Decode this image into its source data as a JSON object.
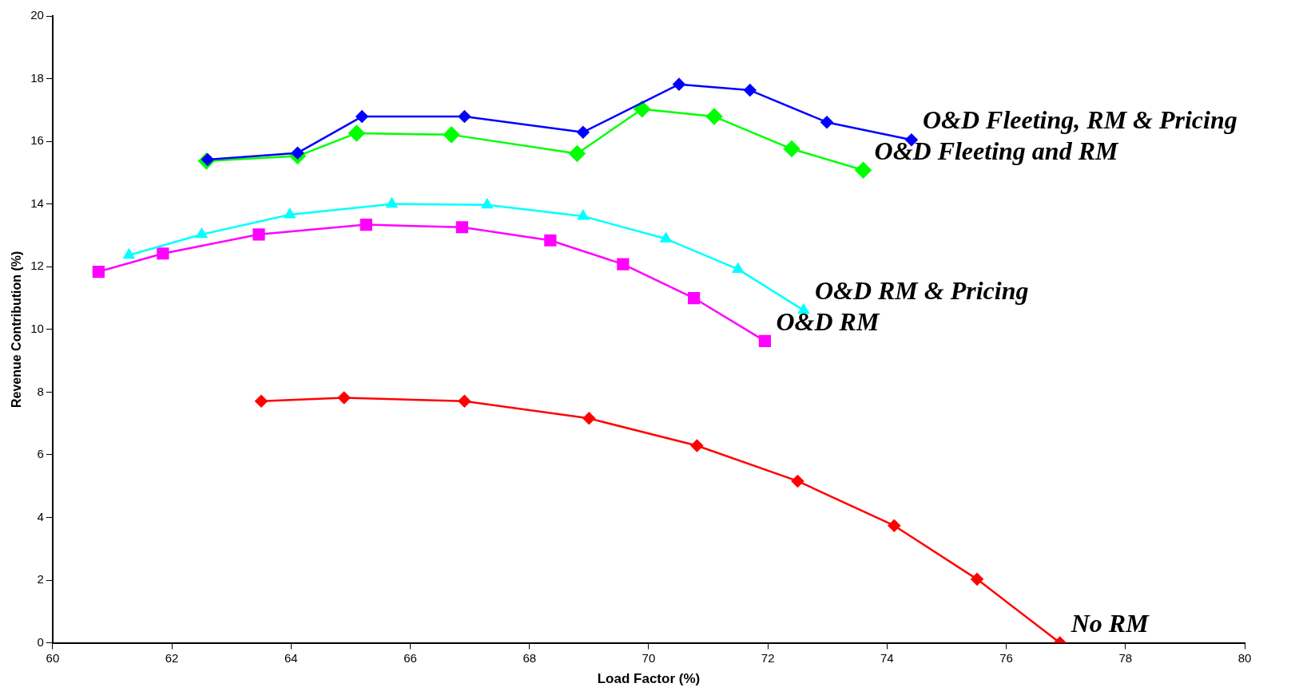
{
  "chart_data": {
    "type": "line",
    "xlabel": "Load Factor (%)",
    "ylabel": "Revenue Contribution (%)",
    "xlim": [
      60,
      80
    ],
    "xticks": [
      60,
      62,
      64,
      66,
      68,
      70,
      72,
      74,
      76,
      78,
      80
    ],
    "ylim": [
      0,
      20
    ],
    "yticks": [
      0,
      2,
      4,
      6,
      8,
      10,
      12,
      14,
      16,
      18,
      20
    ],
    "grid": false,
    "legend": false,
    "line_style": "solid",
    "series": [
      {
        "name": "O&D Fleeting, RM & Pricing",
        "color": "#0000ff",
        "marker": "diamond",
        "x": [
          62.6,
          64.11,
          65.19,
          66.91,
          68.9,
          70.51,
          71.7,
          72.99,
          74.41
        ],
        "values": [
          15.42,
          15.63,
          16.79,
          16.79,
          16.29,
          17.82,
          17.63,
          16.61,
          16.05
        ]
      },
      {
        "name": "O&D Fleeting and RM",
        "color": "#00ff00",
        "marker": "diamond",
        "x": [
          62.58,
          64.11,
          65.1,
          66.69,
          68.8,
          69.89,
          71.1,
          72.4,
          73.6
        ],
        "values": [
          15.37,
          15.53,
          16.26,
          16.21,
          15.61,
          17.03,
          16.79,
          15.76,
          15.08
        ]
      },
      {
        "name": "O&D RM & Pricing",
        "color": "#00ffff",
        "marker": "triangle",
        "x": [
          61.28,
          62.5,
          63.98,
          65.69,
          67.29,
          68.9,
          70.29,
          71.5,
          72.6
        ],
        "values": [
          12.37,
          13.03,
          13.66,
          14.0,
          13.97,
          13.61,
          12.89,
          11.92,
          10.61
        ]
      },
      {
        "name": "O&D RM",
        "color": "#ff00ff",
        "marker": "square",
        "x": [
          60.77,
          61.85,
          63.46,
          65.26,
          66.87,
          68.35,
          69.57,
          70.76,
          71.95
        ],
        "values": [
          11.84,
          12.42,
          13.03,
          13.34,
          13.26,
          12.84,
          12.08,
          11.0,
          9.63
        ]
      },
      {
        "name": "No RM",
        "color": "#ff0000",
        "marker": "diamond",
        "x": [
          63.5,
          64.89,
          66.91,
          69.0,
          70.81,
          72.5,
          74.12,
          75.51,
          76.9
        ],
        "values": [
          7.71,
          7.82,
          7.71,
          7.16,
          6.29,
          5.16,
          3.74,
          2.03,
          0
        ]
      }
    ]
  }
}
